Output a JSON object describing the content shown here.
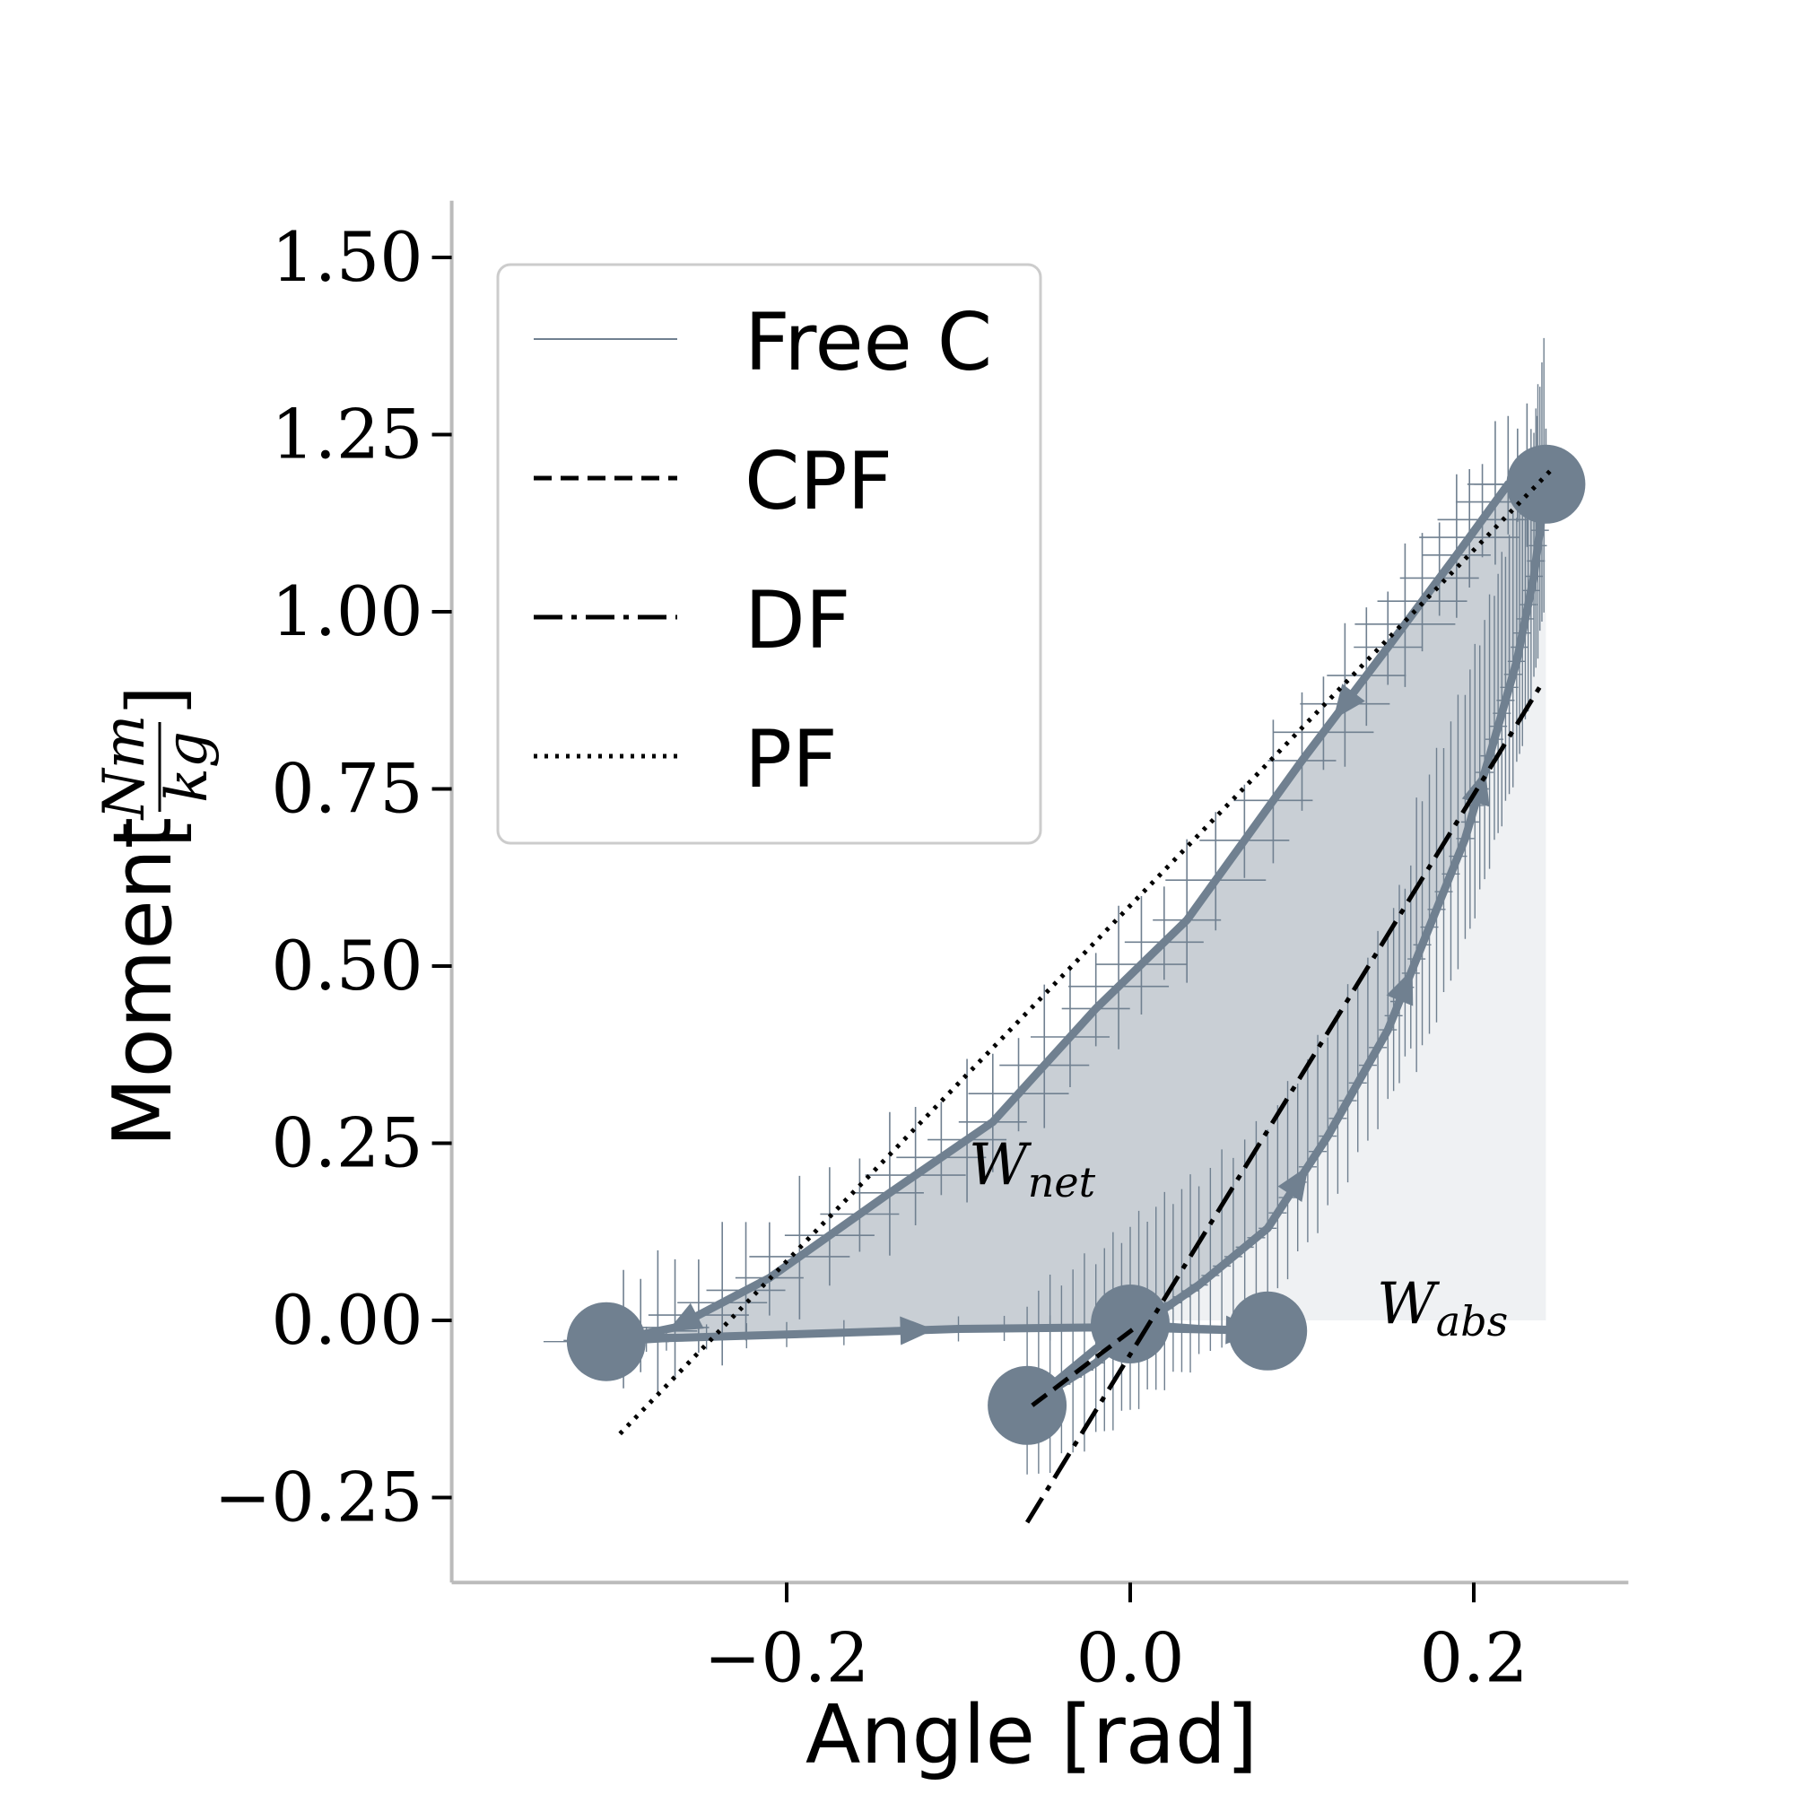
{
  "chart_data": {
    "type": "line",
    "title": "",
    "xlabel": "Angle [rad]",
    "ylabel": "Moment",
    "ylabel_unit": {
      "numerator": "Nm",
      "denominator": "kg"
    },
    "xlim": [
      -0.395,
      0.29
    ],
    "ylim": [
      -0.37,
      1.58
    ],
    "xticks": [
      -0.2,
      0.0,
      0.2
    ],
    "xtick_labels": [
      "−0.2",
      "0.0",
      "0.2"
    ],
    "yticks": [
      -0.25,
      0.0,
      0.25,
      0.5,
      0.75,
      1.0,
      1.25,
      1.5
    ],
    "ytick_labels": [
      "−0.25",
      "0.00",
      "0.25",
      "0.50",
      "0.75",
      "1.00",
      "1.25",
      "1.50"
    ],
    "legend": {
      "location": "upper-left",
      "entries": [
        {
          "label": "Free C",
          "style": "solid"
        },
        {
          "label": "CPF",
          "style": "dashed"
        },
        {
          "label": "DF",
          "style": "dashdot"
        },
        {
          "label": "PF",
          "style": "dotted"
        }
      ]
    },
    "series": [
      {
        "name": "Free C",
        "color": "#708090",
        "points": [
          {
            "x": -0.305,
            "y": -0.03
          },
          {
            "x": -0.27,
            "y": -0.025
          },
          {
            "x": -0.2,
            "y": -0.02
          },
          {
            "x": -0.1,
            "y": -0.012
          },
          {
            "x": -0.02,
            "y": -0.01
          },
          {
            "x": 0.0,
            "y": -0.01
          },
          {
            "x": 0.03,
            "y": -0.012
          },
          {
            "x": 0.08,
            "y": -0.015
          },
          {
            "x": 0.04,
            "y": -0.012
          },
          {
            "x": 0.0,
            "y": -0.005
          },
          {
            "x": -0.02,
            "y": -0.04
          },
          {
            "x": -0.06,
            "y": -0.12
          },
          {
            "x": -0.02,
            "y": -0.06
          },
          {
            "x": 0.01,
            "y": 0.0
          },
          {
            "x": 0.04,
            "y": 0.05
          },
          {
            "x": 0.08,
            "y": 0.13
          },
          {
            "x": 0.115,
            "y": 0.26
          },
          {
            "x": 0.15,
            "y": 0.41
          },
          {
            "x": 0.17,
            "y": 0.53
          },
          {
            "x": 0.195,
            "y": 0.68
          },
          {
            "x": 0.212,
            "y": 0.82
          },
          {
            "x": 0.225,
            "y": 0.93
          },
          {
            "x": 0.235,
            "y": 1.05
          },
          {
            "x": 0.242,
            "y": 1.18
          },
          {
            "x": 0.22,
            "y": 1.18
          },
          {
            "x": 0.19,
            "y": 1.08
          },
          {
            "x": 0.15,
            "y": 0.95
          },
          {
            "x": 0.1,
            "y": 0.79
          },
          {
            "x": 0.033,
            "y": 0.565
          },
          {
            "x": -0.02,
            "y": 0.44
          },
          {
            "x": -0.08,
            "y": 0.28
          },
          {
            "x": -0.14,
            "y": 0.18
          },
          {
            "x": -0.21,
            "y": 0.06
          },
          {
            "x": -0.265,
            "y": -0.01
          },
          {
            "x": -0.305,
            "y": -0.03
          }
        ],
        "markers": [
          {
            "x": -0.305,
            "y": -0.03
          },
          {
            "x": 0.0,
            "y": -0.005
          },
          {
            "x": -0.06,
            "y": -0.12
          },
          {
            "x": 0.08,
            "y": -0.015
          },
          {
            "x": 0.242,
            "y": 1.18
          }
        ]
      },
      {
        "name": "CPF",
        "style": "dashed",
        "points": [
          {
            "x": -0.057,
            "y": -0.12
          },
          {
            "x": 0.003,
            "y": -0.01
          }
        ]
      },
      {
        "name": "DF",
        "style": "dashdot",
        "points": [
          {
            "x": -0.06,
            "y": -0.285
          },
          {
            "x": 0.24,
            "y": 0.9
          }
        ]
      },
      {
        "name": "PF",
        "style": "dotted",
        "points": [
          {
            "x": -0.297,
            "y": -0.16
          },
          {
            "x": 0.245,
            "y": 1.2
          }
        ]
      }
    ],
    "annotations": [
      {
        "label": "W",
        "subscript": "net",
        "x": -0.09,
        "y": 0.19
      },
      {
        "label": "W",
        "subscript": "abs",
        "x": 0.145,
        "y": -0.01
      }
    ]
  }
}
